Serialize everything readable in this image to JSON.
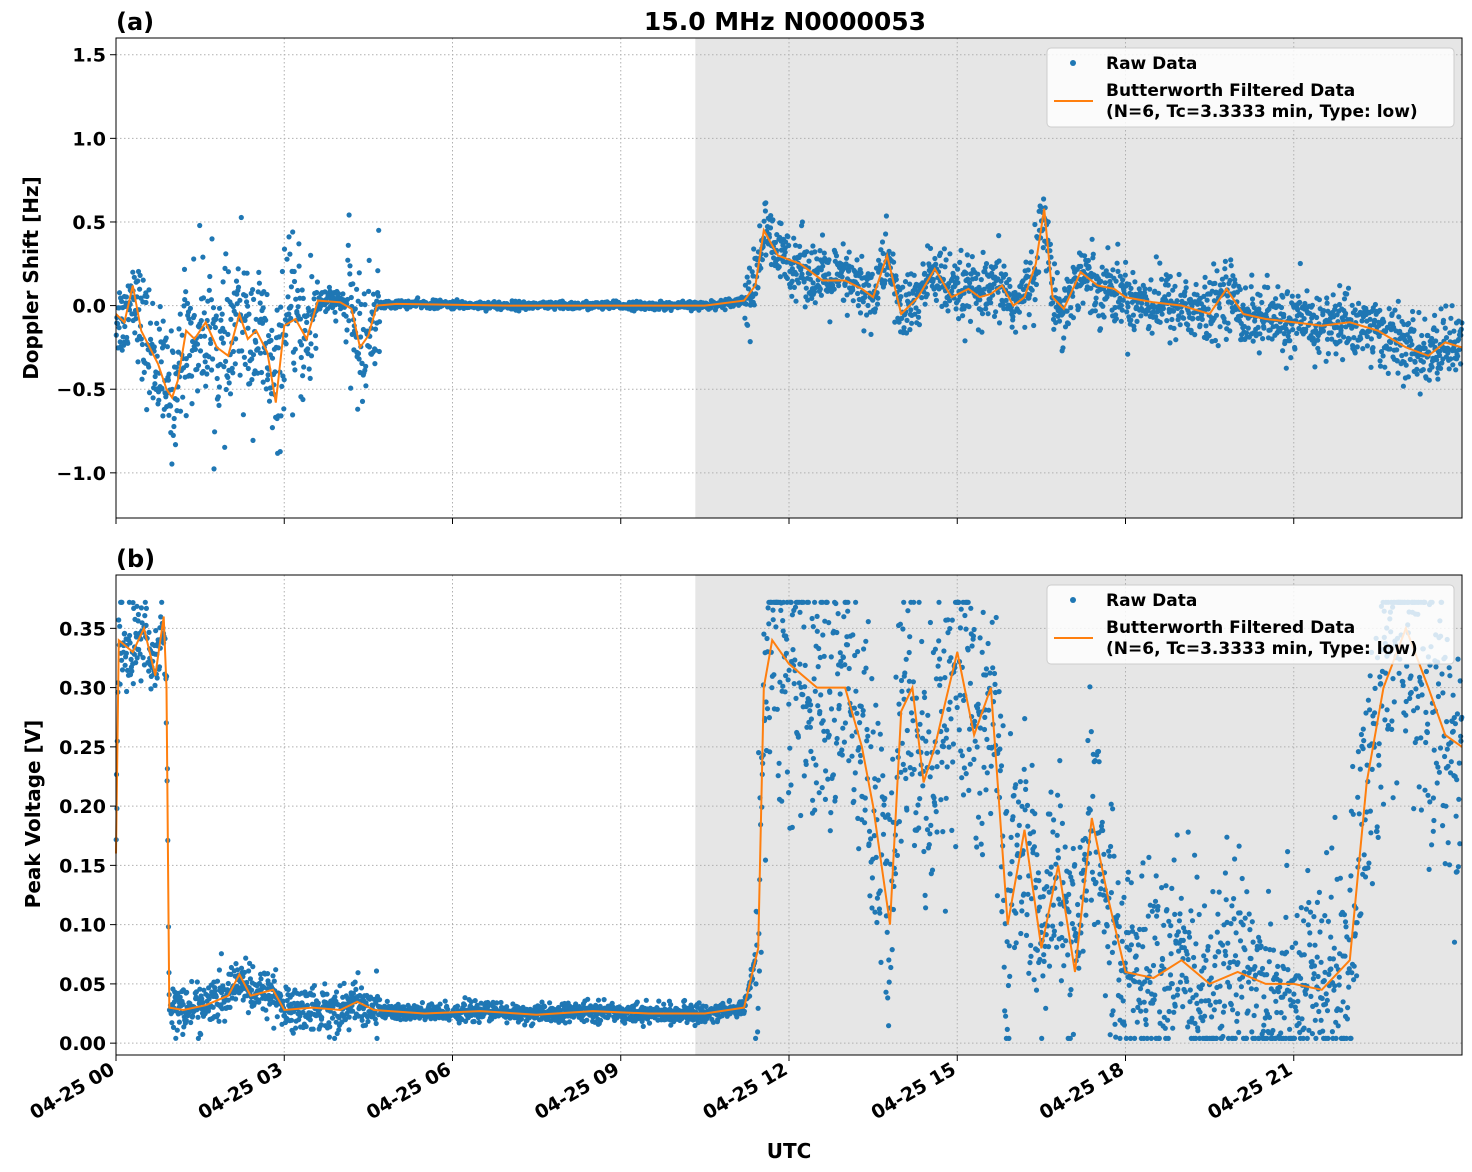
{
  "colors": {
    "raw": "#1f77b4",
    "filtered": "#ff7f0e",
    "shade": "#e6e6e6",
    "grid": "#b0b0b0"
  },
  "chart_data": [
    {
      "type": "scatter",
      "panel_label": "(a)",
      "title": "15.0 MHz N0000053",
      "ylabel": "Doppler Shift [Hz]",
      "xlabel": "",
      "xlim_hours": [
        0,
        24
      ],
      "ylim": [
        -1.27,
        1.6
      ],
      "yticks": [
        -1.0,
        -0.5,
        0.0,
        0.5,
        1.0,
        1.5
      ],
      "ytick_labels": [
        "−1.0",
        "−0.5",
        "0.0",
        "0.5",
        "1.0",
        "1.5"
      ],
      "shaded_region_hours": [
        10.33,
        24
      ],
      "grid": true,
      "legend_placement": "top-right",
      "legend": [
        "Raw Data",
        "Butterworth Filtered Data",
        "(N=6, Tc=3.3333 min, Type: low)"
      ],
      "series": [
        {
          "name": "Butterworth Filtered Data",
          "style": "line",
          "points": [
            [
              0,
              -0.05
            ],
            [
              0.15,
              -0.1
            ],
            [
              0.3,
              0.12
            ],
            [
              0.45,
              -0.15
            ],
            [
              0.6,
              -0.25
            ],
            [
              0.75,
              -0.35
            ],
            [
              0.9,
              -0.5
            ],
            [
              1.0,
              -0.55
            ],
            [
              1.1,
              -0.45
            ],
            [
              1.25,
              -0.15
            ],
            [
              1.4,
              -0.2
            ],
            [
              1.6,
              -0.1
            ],
            [
              1.8,
              -0.25
            ],
            [
              2.0,
              -0.3
            ],
            [
              2.2,
              -0.05
            ],
            [
              2.35,
              -0.2
            ],
            [
              2.5,
              -0.15
            ],
            [
              2.7,
              -0.28
            ],
            [
              2.85,
              -0.58
            ],
            [
              3.0,
              -0.12
            ],
            [
              3.2,
              -0.08
            ],
            [
              3.4,
              -0.2
            ],
            [
              3.6,
              0.03
            ],
            [
              4.0,
              0.02
            ],
            [
              4.2,
              -0.02
            ],
            [
              4.35,
              -0.25
            ],
            [
              4.5,
              -0.18
            ],
            [
              4.65,
              0.0
            ],
            [
              5.0,
              0.01
            ],
            [
              7.0,
              0.0
            ],
            [
              9.0,
              0.0
            ],
            [
              10.5,
              0.0
            ],
            [
              11.2,
              0.03
            ],
            [
              11.4,
              0.12
            ],
            [
              11.55,
              0.45
            ],
            [
              11.8,
              0.3
            ],
            [
              12.2,
              0.25
            ],
            [
              12.6,
              0.15
            ],
            [
              13.0,
              0.15
            ],
            [
              13.3,
              0.1
            ],
            [
              13.5,
              0.05
            ],
            [
              13.75,
              0.3
            ],
            [
              14.0,
              -0.05
            ],
            [
              14.3,
              0.05
            ],
            [
              14.6,
              0.22
            ],
            [
              14.9,
              0.05
            ],
            [
              15.2,
              0.1
            ],
            [
              15.4,
              0.05
            ],
            [
              15.6,
              0.07
            ],
            [
              15.8,
              0.12
            ],
            [
              16.0,
              0.0
            ],
            [
              16.2,
              0.05
            ],
            [
              16.4,
              0.25
            ],
            [
              16.55,
              0.58
            ],
            [
              16.7,
              0.05
            ],
            [
              16.9,
              -0.02
            ],
            [
              17.2,
              0.2
            ],
            [
              17.5,
              0.12
            ],
            [
              17.8,
              0.1
            ],
            [
              18.0,
              0.05
            ],
            [
              18.5,
              0.02
            ],
            [
              19.0,
              0.0
            ],
            [
              19.5,
              -0.05
            ],
            [
              19.8,
              0.1
            ],
            [
              20.1,
              -0.05
            ],
            [
              20.5,
              -0.08
            ],
            [
              21.0,
              -0.1
            ],
            [
              21.5,
              -0.12
            ],
            [
              22.0,
              -0.1
            ],
            [
              22.5,
              -0.15
            ],
            [
              23.0,
              -0.25
            ],
            [
              23.4,
              -0.3
            ],
            [
              23.7,
              -0.22
            ],
            [
              24.0,
              -0.25
            ]
          ]
        }
      ]
    },
    {
      "type": "scatter",
      "panel_label": "(b)",
      "title": "",
      "ylabel": "Peak Voltage [V]",
      "xlabel": "UTC",
      "xlim_hours": [
        0,
        24
      ],
      "ylim": [
        -0.01,
        0.395
      ],
      "yticks": [
        0.0,
        0.05,
        0.1,
        0.15,
        0.2,
        0.25,
        0.3,
        0.35
      ],
      "ytick_labels": [
        "0.00",
        "0.05",
        "0.10",
        "0.15",
        "0.20",
        "0.25",
        "0.30",
        "0.35"
      ],
      "xticks_hours": [
        0,
        3,
        6,
        9,
        12,
        15,
        18,
        21
      ],
      "xtick_labels": [
        "04-25 00",
        "04-25 03",
        "04-25 06",
        "04-25 09",
        "04-25 12",
        "04-25 15",
        "04-25 18",
        "04-25 21"
      ],
      "shaded_region_hours": [
        10.33,
        24
      ],
      "grid": true,
      "legend_placement": "top-right",
      "legend": [
        "Raw Data",
        "Butterworth Filtered Data",
        "(N=6, Tc=3.3333 min, Type: low)"
      ],
      "series": [
        {
          "name": "Butterworth Filtered Data",
          "style": "line",
          "points": [
            [
              0,
              0.16
            ],
            [
              0.05,
              0.34
            ],
            [
              0.3,
              0.33
            ],
            [
              0.5,
              0.35
            ],
            [
              0.7,
              0.31
            ],
            [
              0.85,
              0.36
            ],
            [
              0.9,
              0.3
            ],
            [
              0.95,
              0.03
            ],
            [
              1.2,
              0.028
            ],
            [
              1.6,
              0.032
            ],
            [
              2.0,
              0.04
            ],
            [
              2.2,
              0.058
            ],
            [
              2.4,
              0.04
            ],
            [
              2.8,
              0.045
            ],
            [
              3.0,
              0.028
            ],
            [
              3.5,
              0.03
            ],
            [
              4.0,
              0.028
            ],
            [
              4.3,
              0.035
            ],
            [
              4.6,
              0.028
            ],
            [
              5.5,
              0.025
            ],
            [
              6.5,
              0.027
            ],
            [
              7.5,
              0.024
            ],
            [
              8.5,
              0.027
            ],
            [
              9.5,
              0.025
            ],
            [
              10.5,
              0.025
            ],
            [
              11.2,
              0.03
            ],
            [
              11.45,
              0.08
            ],
            [
              11.55,
              0.3
            ],
            [
              11.7,
              0.34
            ],
            [
              12.0,
              0.32
            ],
            [
              12.5,
              0.3
            ],
            [
              13.0,
              0.3
            ],
            [
              13.3,
              0.25
            ],
            [
              13.5,
              0.2
            ],
            [
              13.8,
              0.1
            ],
            [
              14.0,
              0.28
            ],
            [
              14.2,
              0.3
            ],
            [
              14.4,
              0.22
            ],
            [
              14.6,
              0.25
            ],
            [
              14.8,
              0.29
            ],
            [
              15.0,
              0.33
            ],
            [
              15.3,
              0.26
            ],
            [
              15.6,
              0.3
            ],
            [
              15.9,
              0.1
            ],
            [
              16.2,
              0.18
            ],
            [
              16.5,
              0.08
            ],
            [
              16.8,
              0.15
            ],
            [
              17.1,
              0.06
            ],
            [
              17.4,
              0.19
            ],
            [
              17.7,
              0.12
            ],
            [
              18.0,
              0.06
            ],
            [
              18.5,
              0.055
            ],
            [
              19.0,
              0.07
            ],
            [
              19.5,
              0.05
            ],
            [
              20.0,
              0.06
            ],
            [
              20.5,
              0.05
            ],
            [
              21.0,
              0.05
            ],
            [
              21.5,
              0.045
            ],
            [
              22.0,
              0.07
            ],
            [
              22.3,
              0.22
            ],
            [
              22.6,
              0.3
            ],
            [
              23.0,
              0.35
            ],
            [
              23.4,
              0.3
            ],
            [
              23.7,
              0.26
            ],
            [
              24.0,
              0.25
            ]
          ]
        }
      ]
    }
  ]
}
